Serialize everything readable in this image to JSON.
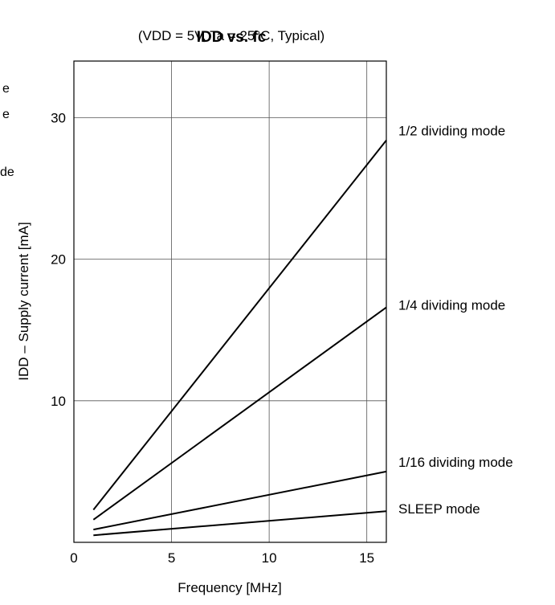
{
  "chart_data": {
    "type": "line",
    "title": "IDD vs. fc",
    "subtitle": "(VDD = 5V,  Ta = 25°C, Typical)",
    "xlabel": "Frequency  [MHz]",
    "ylabel": "IDD – Supply current  [mA]",
    "xlim": [
      0,
      16
    ],
    "ylim": [
      0,
      34
    ],
    "xticks": [
      0,
      5,
      10,
      15
    ],
    "yticks": [
      10,
      20,
      30
    ],
    "grid": true,
    "series": [
      {
        "name": "1/2 dividing mode",
        "x": [
          1,
          16
        ],
        "y": [
          2.3,
          28.4
        ]
      },
      {
        "name": "1/4 dividing mode",
        "x": [
          1,
          16
        ],
        "y": [
          1.6,
          16.6
        ]
      },
      {
        "name": "1/16 dividing mode",
        "x": [
          1,
          16
        ],
        "y": [
          0.9,
          5.0
        ]
      },
      {
        "name": "SLEEP mode",
        "x": [
          1,
          16
        ],
        "y": [
          0.5,
          2.2
        ]
      }
    ],
    "left_margin_fragments": [
      "e",
      "e",
      "de"
    ]
  }
}
